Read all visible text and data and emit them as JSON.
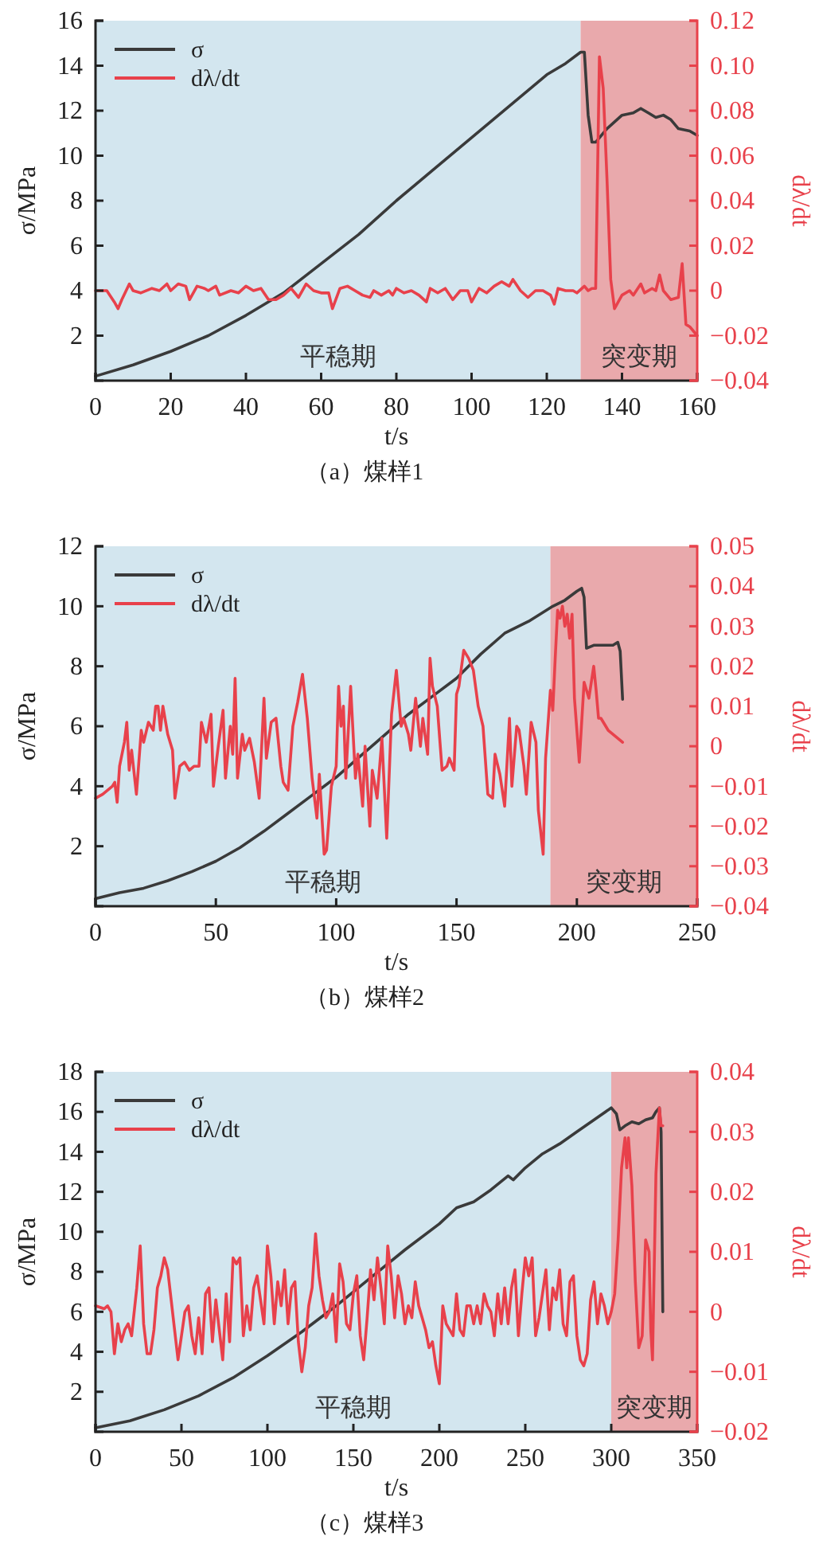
{
  "chart_data": [
    {
      "type": "line",
      "title": "（a）煤样1",
      "xlabel": "t/s",
      "ylabel": "σ/MPa",
      "y2label": "dλ/dt",
      "xlim": [
        0,
        160
      ],
      "xticks": [
        0,
        20,
        40,
        60,
        80,
        100,
        120,
        140,
        160
      ],
      "ylim": [
        0,
        16
      ],
      "yticks": [
        2,
        4,
        6,
        8,
        10,
        12,
        14,
        16
      ],
      "y2lim": [
        -0.04,
        0.12
      ],
      "y2ticks": [
        {
          "value": -0.04,
          "label": "−0.04"
        },
        {
          "value": -0.02,
          "label": "−0.02"
        },
        0,
        0.02,
        0.04,
        0.06,
        0.08,
        {
          "value": 0.1,
          "label": "0.10"
        },
        0.12
      ],
      "legend": "top left",
      "bands": [
        {
          "axis": "x",
          "from": 0,
          "to": 129,
          "label": "平稳期",
          "color": "#d3e6ef"
        },
        {
          "axis": "x",
          "from": 129,
          "to": 160,
          "label": "突变期",
          "color": "#e9a9ac"
        }
      ],
      "series": [
        {
          "name": "σ",
          "color": "#3a3a3a",
          "x": [
            0,
            10,
            20,
            30,
            40,
            50,
            60,
            70,
            80,
            90,
            100,
            110,
            120,
            125,
            129,
            130,
            131,
            132,
            133,
            136,
            140,
            143,
            145,
            147,
            149,
            151,
            153,
            155,
            158,
            160
          ],
          "values": [
            0.2,
            0.7,
            1.3,
            2.0,
            2.9,
            3.9,
            5.2,
            6.5,
            8.0,
            9.4,
            10.8,
            12.2,
            13.6,
            14.1,
            14.6,
            14.6,
            11.8,
            10.6,
            10.6,
            11.2,
            11.8,
            11.9,
            12.1,
            11.9,
            11.7,
            11.8,
            11.6,
            11.2,
            11.1,
            10.9
          ]
        },
        {
          "name": "dλ/dt",
          "color": "#e8414b",
          "axis": "y2",
          "x": [
            0,
            3,
            5,
            6,
            7,
            9,
            10,
            12,
            15,
            17,
            19,
            20,
            22,
            24,
            25,
            27,
            29,
            30,
            32,
            33,
            36,
            38,
            40,
            42,
            44,
            46,
            48,
            50,
            52,
            54,
            56,
            58,
            60,
            62,
            63,
            65,
            67,
            69,
            71,
            73,
            74,
            76,
            78,
            79,
            80,
            82,
            84,
            86,
            88,
            89,
            91,
            93,
            95,
            97,
            99,
            100,
            102,
            104,
            106,
            108,
            110,
            111,
            113,
            115,
            117,
            119,
            121,
            122,
            123,
            125,
            127,
            128,
            130,
            131,
            132,
            133,
            134,
            135,
            136,
            137,
            138,
            140,
            142,
            143,
            145,
            146,
            148,
            149,
            150,
            151,
            153,
            155,
            156,
            157,
            158,
            160
          ],
          "values": [
            0,
            0,
            -0.005,
            -0.008,
            -0.004,
            0.003,
            0,
            -0.001,
            0.001,
            0,
            0.003,
            0,
            0.003,
            0.002,
            -0.004,
            0.002,
            0.001,
            0,
            0.002,
            -0.002,
            0,
            -0.001,
            0.002,
            0,
            0.001,
            -0.004,
            -0.004,
            -0.002,
            0.001,
            -0.003,
            0.003,
            0,
            -0.001,
            -0.001,
            -0.008,
            0.001,
            0.002,
            0,
            -0.002,
            -0.003,
            0,
            -0.002,
            0,
            -0.002,
            0.001,
            -0.001,
            0,
            -0.002,
            -0.005,
            0.001,
            -0.001,
            0.001,
            -0.004,
            0,
            0,
            -0.005,
            0.001,
            -0.001,
            0.002,
            0.004,
            0.002,
            0.005,
            0,
            -0.003,
            0,
            0,
            -0.002,
            -0.006,
            0.001,
            0,
            0,
            -0.001,
            0.002,
            0,
            0.001,
            0.001,
            0.104,
            0.09,
            0.05,
            0.005,
            -0.008,
            -0.002,
            0,
            -0.002,
            0.003,
            -0.001,
            0.001,
            0,
            0.007,
            0,
            -0.004,
            -0.003,
            0.012,
            -0.015,
            -0.016,
            -0.02
          ]
        }
      ]
    },
    {
      "type": "line",
      "title": "（b）煤样2",
      "xlabel": "t/s",
      "ylabel": "σ/MPa",
      "y2label": "dλ/dt",
      "xlim": [
        0,
        250
      ],
      "xticks": [
        0,
        50,
        100,
        150,
        200,
        250
      ],
      "ylim": [
        0,
        12
      ],
      "yticks": [
        2,
        4,
        6,
        8,
        10,
        12
      ],
      "y2lim": [
        -0.04,
        0.05
      ],
      "y2ticks": [
        {
          "value": -0.04,
          "label": "−0.04"
        },
        {
          "value": -0.03,
          "label": "−0.03"
        },
        {
          "value": -0.02,
          "label": "−0.02"
        },
        {
          "value": -0.01,
          "label": "−0.01"
        },
        0,
        0.01,
        0.02,
        0.03,
        0.04,
        0.05
      ],
      "legend": "top left",
      "bands": [
        {
          "axis": "x",
          "from": 0,
          "to": 189,
          "label": "平稳期",
          "color": "#d3e6ef"
        },
        {
          "axis": "x",
          "from": 189,
          "to": 250,
          "label": "突变期",
          "color": "#e9a9ac"
        }
      ],
      "series": [
        {
          "name": "σ",
          "color": "#3a3a3a",
          "x": [
            0,
            10,
            20,
            30,
            40,
            50,
            60,
            70,
            80,
            90,
            100,
            110,
            120,
            130,
            140,
            150,
            160,
            170,
            180,
            190,
            195,
            200,
            202,
            203,
            204,
            207,
            215,
            217,
            218,
            219
          ],
          "values": [
            0.25,
            0.45,
            0.6,
            0.85,
            1.15,
            1.5,
            1.95,
            2.5,
            3.1,
            3.7,
            4.3,
            5.0,
            5.7,
            6.4,
            7.0,
            7.6,
            8.4,
            9.1,
            9.5,
            10.0,
            10.2,
            10.5,
            10.6,
            10.3,
            8.6,
            8.7,
            8.7,
            8.8,
            8.5,
            6.9
          ]
        },
        {
          "name": "dλ/dt",
          "color": "#e8414b",
          "axis": "y2",
          "x": [
            0,
            3,
            7,
            8,
            9,
            10,
            12,
            13,
            14,
            15,
            17,
            19,
            20,
            22,
            24,
            25,
            26,
            27,
            28,
            30,
            32,
            33,
            35,
            37,
            39,
            41,
            43,
            44,
            46,
            48,
            49,
            51,
            53,
            54,
            56,
            57,
            58,
            59,
            61,
            62,
            64,
            66,
            68,
            70,
            71,
            73,
            75,
            77,
            78,
            80,
            82,
            84,
            86,
            88,
            90,
            92,
            93,
            95,
            96,
            98,
            100,
            101,
            102,
            103,
            104,
            106,
            108,
            109,
            111,
            112,
            114,
            115,
            117,
            119,
            121,
            123,
            125,
            127,
            128,
            130,
            131,
            133,
            135,
            136,
            138,
            139,
            140,
            142,
            144,
            146,
            147,
            149,
            150,
            151,
            153,
            155,
            157,
            159,
            161,
            163,
            165,
            166,
            168,
            170,
            172,
            173,
            175,
            176,
            178,
            179,
            181,
            183,
            184,
            186,
            187,
            189,
            190,
            191,
            192,
            193,
            194,
            195,
            196,
            197,
            198,
            199,
            201,
            203,
            205,
            207,
            208,
            209,
            210,
            213,
            219
          ],
          "values": [
            -0.013,
            -0.012,
            -0.01,
            -0.009,
            -0.014,
            -0.005,
            0.001,
            0.006,
            -0.006,
            -0.001,
            -0.012,
            0.004,
            0.001,
            0.006,
            0.004,
            0.01,
            0.01,
            0.004,
            0.01,
            0.003,
            -0.001,
            -0.013,
            -0.005,
            -0.004,
            -0.006,
            -0.005,
            -0.005,
            0.006,
            0.001,
            0.008,
            -0.01,
            0,
            0.009,
            -0.008,
            0.005,
            -0.002,
            0.017,
            -0.008,
            0.003,
            -0.001,
            0.002,
            -0.004,
            -0.013,
            0.012,
            -0.003,
            0.006,
            0.007,
            -0.005,
            -0.009,
            -0.011,
            0.005,
            0.011,
            0.018,
            0.007,
            -0.008,
            -0.018,
            -0.007,
            -0.027,
            -0.026,
            -0.01,
            -0.005,
            0.015,
            0.005,
            0.01,
            -0.008,
            0.015,
            -0.008,
            -0.002,
            -0.015,
            0,
            -0.02,
            -0.006,
            -0.013,
            0.002,
            -0.023,
            0.008,
            0.019,
            0.005,
            0.007,
            0.003,
            -0.001,
            0.012,
            0,
            0.007,
            -0.002,
            0.022,
            0.015,
            0.01,
            -0.006,
            -0.005,
            -0.003,
            -0.006,
            0.013,
            0.015,
            0.024,
            0.022,
            0.019,
            0.01,
            0.005,
            -0.012,
            -0.013,
            -0.002,
            -0.007,
            -0.015,
            0.007,
            -0.01,
            0.005,
            0.004,
            -0.005,
            -0.012,
            0.006,
            0.001,
            -0.016,
            -0.027,
            -0.003,
            0.014,
            0.009,
            0.022,
            0.034,
            0.032,
            0.035,
            0.03,
            0.033,
            0.027,
            0.033,
            0.012,
            -0.004,
            0.016,
            0.012,
            0.02,
            0.014,
            0.007,
            0.007,
            0.004,
            0.001
          ]
        }
      ]
    },
    {
      "type": "line",
      "title": "（c）煤样3",
      "xlabel": "t/s",
      "ylabel": "σ/MPa",
      "y2label": "dλ/dt",
      "xlim": [
        0,
        350
      ],
      "xticks": [
        0,
        50,
        100,
        150,
        200,
        250,
        300,
        350
      ],
      "ylim": [
        0,
        18
      ],
      "yticks": [
        2,
        4,
        6,
        8,
        10,
        12,
        14,
        16,
        18
      ],
      "y2lim": [
        -0.02,
        0.04
      ],
      "y2ticks": [
        {
          "value": -0.02,
          "label": "−0.02"
        },
        {
          "value": -0.01,
          "label": "−0.01"
        },
        0,
        0.01,
        0.02,
        0.03,
        0.04
      ],
      "legend": "top left",
      "bands": [
        {
          "axis": "x",
          "from": 0,
          "to": 300,
          "label": "平稳期",
          "color": "#d3e6ef"
        },
        {
          "axis": "x",
          "from": 300,
          "to": 350,
          "label": "突变期",
          "color": "#e9a9ac"
        }
      ],
      "series": [
        {
          "name": "σ",
          "color": "#3a3a3a",
          "x": [
            0,
            20,
            40,
            60,
            80,
            100,
            120,
            140,
            160,
            180,
            200,
            210,
            220,
            230,
            240,
            243,
            250,
            260,
            270,
            280,
            290,
            300,
            303,
            305,
            308,
            312,
            316,
            320,
            324,
            326,
            328,
            329,
            330
          ],
          "values": [
            0.2,
            0.55,
            1.1,
            1.8,
            2.7,
            3.8,
            5.0,
            6.3,
            7.7,
            9.1,
            10.4,
            11.2,
            11.5,
            12.1,
            12.8,
            12.6,
            13.2,
            13.9,
            14.4,
            15.0,
            15.6,
            16.2,
            15.9,
            15.1,
            15.3,
            15.5,
            15.4,
            15.6,
            15.7,
            16.0,
            16.2,
            15.0,
            6.0
          ]
        },
        {
          "name": "dλ/dt",
          "color": "#e8414b",
          "axis": "y2",
          "x": [
            0,
            5,
            7,
            9,
            11,
            13,
            15,
            17,
            19,
            21,
            24,
            26,
            28,
            30,
            32,
            34,
            36,
            38,
            40,
            42,
            44,
            46,
            48,
            50,
            52,
            54,
            56,
            58,
            60,
            62,
            64,
            66,
            68,
            70,
            72,
            74,
            76,
            78,
            80,
            82,
            84,
            86,
            88,
            90,
            92,
            94,
            96,
            98,
            100,
            102,
            104,
            106,
            108,
            110,
            112,
            114,
            116,
            118,
            120,
            122,
            124,
            126,
            128,
            130,
            132,
            134,
            136,
            138,
            140,
            142,
            144,
            146,
            148,
            150,
            152,
            154,
            156,
            158,
            160,
            162,
            164,
            166,
            168,
            170,
            172,
            174,
            176,
            178,
            180,
            182,
            184,
            186,
            188,
            190,
            192,
            194,
            196,
            198,
            200,
            202,
            204,
            206,
            208,
            210,
            212,
            214,
            216,
            218,
            220,
            222,
            224,
            226,
            228,
            230,
            232,
            234,
            236,
            238,
            240,
            242,
            244,
            246,
            248,
            250,
            252,
            254,
            256,
            258,
            260,
            262,
            264,
            266,
            268,
            270,
            272,
            274,
            276,
            278,
            280,
            282,
            284,
            286,
            288,
            290,
            292,
            294,
            296,
            298,
            300,
            302,
            304,
            306,
            308,
            309,
            310,
            312,
            314,
            316,
            318,
            320,
            322,
            323,
            324,
            326,
            328,
            329,
            330
          ],
          "values": [
            0.001,
            0.0005,
            0.001,
            0,
            -0.007,
            -0.002,
            -0.005,
            -0.003,
            -0.002,
            -0.004,
            0.004,
            0.011,
            -0.002,
            -0.007,
            -0.007,
            -0.003,
            0.004,
            0.006,
            0.009,
            0.007,
            0.002,
            -0.003,
            -0.008,
            -0.004,
            0,
            0.001,
            -0.004,
            -0.007,
            -0.001,
            -0.007,
            0.003,
            0.004,
            -0.005,
            0.002,
            -0.003,
            -0.008,
            0.003,
            -0.005,
            0.009,
            0.008,
            0.009,
            -0.004,
            0.001,
            -0.003,
            0.004,
            0.006,
            0.002,
            -0.002,
            0.011,
            0.006,
            -0.002,
            0.005,
            0.001,
            0.007,
            -0.002,
            0.004,
            0.005,
            -0.005,
            -0.01,
            -0.006,
            0.001,
            0.004,
            0.013,
            0.006,
            0.002,
            -0.001,
            0,
            0.003,
            -0.005,
            0.008,
            0.005,
            -0.002,
            -0.003,
            0.003,
            0.006,
            -0.004,
            -0.008,
            -0.001,
            0.007,
            0.002,
            0.009,
            0.004,
            -0.002,
            0.011,
            0.006,
            -0.001,
            0.006,
            0.003,
            -0.002,
            0.001,
            -0.001,
            0.005,
            0.001,
            -0.001,
            -0.003,
            -0.006,
            -0.005,
            -0.009,
            -0.012,
            0.001,
            -0.002,
            -0.003,
            -0.004,
            0.003,
            -0.003,
            -0.004,
            0.001,
            0.001,
            -0.002,
            0.001,
            -0.002,
            0.003,
            0.001,
            0,
            -0.004,
            0.003,
            -0.002,
            0.004,
            -0.002,
            0.004,
            0.007,
            -0.004,
            0.003,
            0.009,
            0.006,
            0.009,
            -0.004,
            -0.001,
            0.003,
            0.007,
            -0.003,
            0.004,
            0.002,
            0.007,
            -0.002,
            -0.004,
            0.005,
            0.006,
            -0.004,
            -0.008,
            -0.009,
            -0.007,
            0.002,
            0.005,
            -0.002,
            0.003,
            0.001,
            -0.002,
            0,
            0.003,
            0.012,
            0.024,
            0.029,
            0.024,
            0.029,
            0.021,
            0.005,
            -0.006,
            -0.004,
            0.012,
            0.01,
            -0.003,
            -0.008,
            0.023,
            0.034,
            0.031,
            0.031
          ]
        }
      ]
    }
  ]
}
